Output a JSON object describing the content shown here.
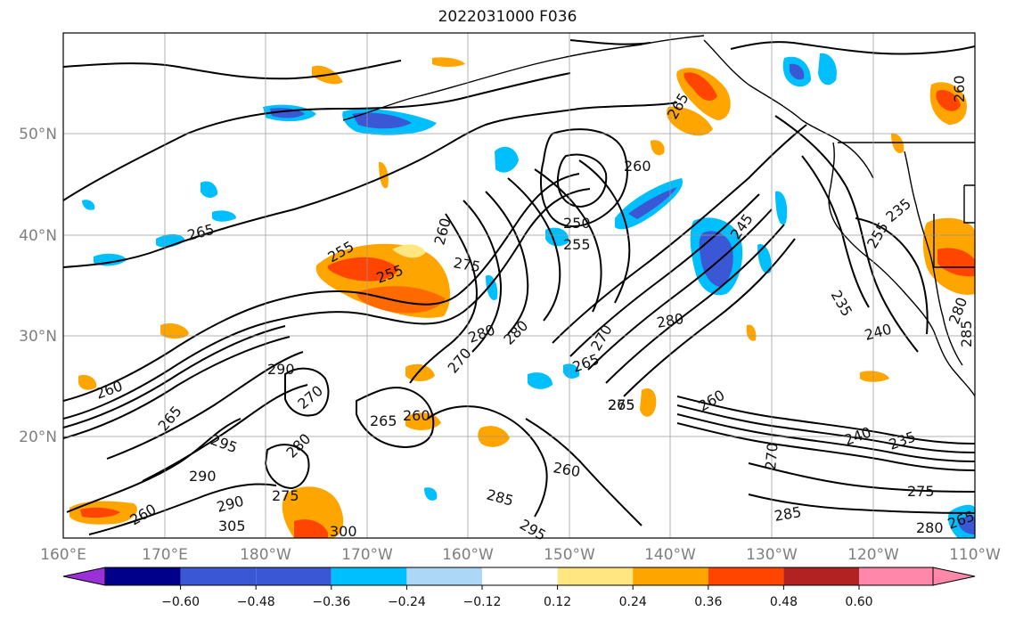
{
  "title": "2022031000 F036",
  "map": {
    "lon_ticks": [
      "160°E",
      "170°E",
      "180°W",
      "170°W",
      "160°W",
      "150°W",
      "140°W",
      "130°W",
      "120°W",
      "110°W"
    ],
    "lat_ticks": [
      "50°N",
      "40°N",
      "30°N",
      "20°N"
    ],
    "grid": true,
    "contour_labels": [
      "265",
      "260",
      "265",
      "250",
      "255",
      "275",
      "260",
      "255",
      "245",
      "235",
      "255",
      "235",
      "240",
      "260",
      "255",
      "280",
      "280",
      "270",
      "280",
      "265",
      "275",
      "265",
      "290",
      "270",
      "270",
      "265",
      "260",
      "260",
      "295",
      "260",
      "280",
      "290",
      "275",
      "290",
      "260",
      "300",
      "305",
      "285",
      "295",
      "265",
      "260",
      "240",
      "235",
      "270",
      "275",
      "285",
      "280",
      "285",
      "280",
      "265"
    ]
  },
  "colorbar": {
    "levels": [
      "−0.60",
      "−0.48",
      "−0.36",
      "−0.24",
      "−0.12",
      "0.12",
      "0.24",
      "0.36",
      "0.48",
      "0.60"
    ],
    "colors": [
      "#9b30d9",
      "#00008b",
      "#3a58d6",
      "#00bfff",
      "#add8f5",
      "#ffffff",
      "#ffe680",
      "#ffa500",
      "#ff4500",
      "#b22222",
      "#ff88aa"
    ],
    "extend": "both"
  }
}
